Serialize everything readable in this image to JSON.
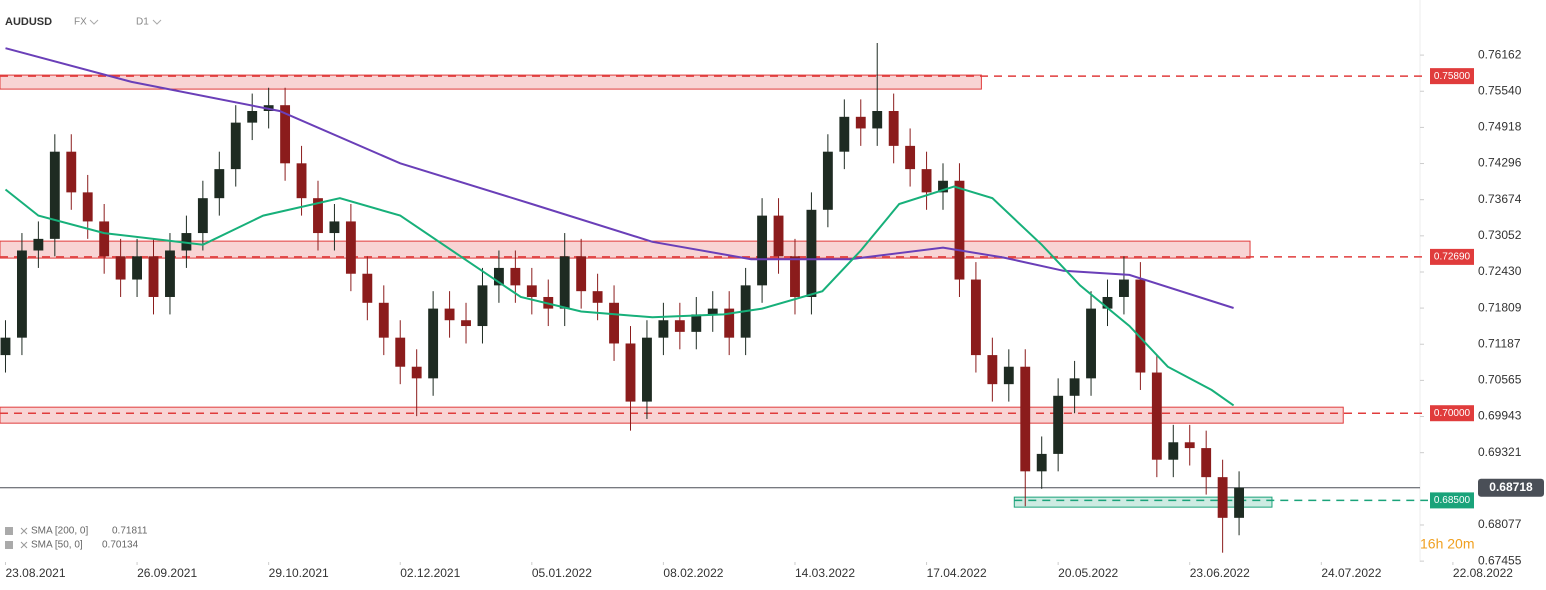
{
  "header": {
    "symbol": "AUDUSD",
    "market": "FX",
    "interval": "D1"
  },
  "timer": "16h 20m",
  "chart_data": {
    "type": "candlestick",
    "up_color": "#1e2b22",
    "down_color": "#8b1c1c",
    "xlim": [
      -1,
      258
    ],
    "ylim": [
      0.6744,
      0.7711
    ],
    "xticks": [
      {
        "value": 0,
        "label": "23.08.2021"
      },
      {
        "value": 24,
        "label": "26.09.2021"
      },
      {
        "value": 48,
        "label": "29.10.2021"
      },
      {
        "value": 72,
        "label": "02.12.2021"
      },
      {
        "value": 96,
        "label": "05.01.2022"
      },
      {
        "value": 120,
        "label": "08.02.2022"
      },
      {
        "value": 144,
        "label": "14.03.2022"
      },
      {
        "value": 168,
        "label": "17.04.2022"
      },
      {
        "value": 192,
        "label": "20.05.2022"
      },
      {
        "value": 216,
        "label": "23.06.2022"
      },
      {
        "value": 240,
        "label": "24.07.2022"
      },
      {
        "value": 264,
        "label": "22.08.2022"
      }
    ],
    "yticks": [
      0.76162,
      {
        "value": 0.7554,
        "label": "0.75540"
      },
      0.74918,
      0.74296,
      0.73674,
      0.73052,
      {
        "value": 0.7243,
        "label": "0.72430"
      },
      0.71809,
      0.71187,
      0.70565,
      0.69943,
      0.69321,
      0.68077,
      0.67455
    ],
    "x": [
      0,
      3,
      6,
      9,
      12,
      15,
      18,
      21,
      24,
      27,
      30,
      33,
      36,
      39,
      42,
      45,
      48,
      51,
      54,
      57,
      60,
      63,
      66,
      69,
      72,
      75,
      78,
      81,
      84,
      87,
      90,
      93,
      96,
      99,
      102,
      105,
      108,
      111,
      114,
      117,
      120,
      123,
      126,
      129,
      132,
      135,
      138,
      141,
      144,
      147,
      150,
      153,
      156,
      159,
      162,
      165,
      168,
      171,
      174,
      177,
      180,
      183,
      186,
      189,
      192,
      195,
      198,
      201,
      204,
      207,
      210,
      213,
      216,
      219,
      222,
      225
    ],
    "open": [
      0.71,
      0.713,
      0.728,
      0.73,
      0.745,
      0.738,
      0.733,
      0.727,
      0.723,
      0.727,
      0.72,
      0.728,
      0.731,
      0.737,
      0.742,
      0.75,
      0.752,
      0.753,
      0.743,
      0.737,
      0.731,
      0.733,
      0.724,
      0.719,
      0.713,
      0.708,
      0.706,
      0.718,
      0.716,
      0.715,
      0.722,
      0.725,
      0.722,
      0.72,
      0.718,
      0.727,
      0.721,
      0.719,
      0.712,
      0.702,
      0.713,
      0.716,
      0.714,
      0.717,
      0.718,
      0.713,
      0.722,
      0.734,
      0.727,
      0.72,
      0.735,
      0.745,
      0.751,
      0.749,
      0.752,
      0.746,
      0.742,
      0.738,
      0.74,
      0.723,
      0.71,
      0.705,
      0.708,
      0.69,
      0.693,
      0.703,
      0.706,
      0.718,
      0.72,
      0.723,
      0.707,
      0.692,
      0.695,
      0.694,
      0.689,
      0.682
    ],
    "high": [
      0.716,
      0.731,
      0.733,
      0.748,
      0.748,
      0.741,
      0.736,
      0.73,
      0.73,
      0.73,
      0.731,
      0.734,
      0.74,
      0.745,
      0.753,
      0.755,
      0.756,
      0.756,
      0.746,
      0.74,
      0.736,
      0.736,
      0.727,
      0.722,
      0.716,
      0.711,
      0.721,
      0.721,
      0.719,
      0.725,
      0.728,
      0.728,
      0.725,
      0.723,
      0.731,
      0.73,
      0.724,
      0.722,
      0.715,
      0.716,
      0.719,
      0.719,
      0.72,
      0.721,
      0.721,
      0.725,
      0.737,
      0.737,
      0.73,
      0.738,
      0.748,
      0.754,
      0.754,
      0.7637,
      0.755,
      0.749,
      0.745,
      0.743,
      0.743,
      0.726,
      0.713,
      0.711,
      0.711,
      0.696,
      0.706,
      0.709,
      0.721,
      0.723,
      0.727,
      0.726,
      0.71,
      0.698,
      0.698,
      0.697,
      0.692,
      0.69
    ],
    "low": [
      0.707,
      0.71,
      0.725,
      0.727,
      0.735,
      0.73,
      0.724,
      0.72,
      0.72,
      0.717,
      0.717,
      0.725,
      0.728,
      0.734,
      0.739,
      0.747,
      0.749,
      0.74,
      0.734,
      0.728,
      0.728,
      0.721,
      0.716,
      0.71,
      0.705,
      0.6995,
      0.703,
      0.713,
      0.712,
      0.712,
      0.719,
      0.719,
      0.717,
      0.715,
      0.715,
      0.718,
      0.716,
      0.709,
      0.697,
      0.699,
      0.71,
      0.711,
      0.711,
      0.714,
      0.71,
      0.71,
      0.719,
      0.724,
      0.717,
      0.717,
      0.732,
      0.742,
      0.746,
      0.746,
      0.743,
      0.739,
      0.735,
      0.735,
      0.72,
      0.707,
      0.702,
      0.702,
      0.684,
      0.687,
      0.69,
      0.7,
      0.703,
      0.715,
      0.717,
      0.704,
      0.689,
      0.689,
      0.691,
      0.686,
      0.676,
      0.679
    ],
    "close": [
      0.713,
      0.728,
      0.73,
      0.745,
      0.738,
      0.733,
      0.727,
      0.723,
      0.727,
      0.72,
      0.728,
      0.731,
      0.737,
      0.742,
      0.75,
      0.752,
      0.753,
      0.743,
      0.737,
      0.731,
      0.733,
      0.724,
      0.719,
      0.713,
      0.708,
      0.706,
      0.718,
      0.716,
      0.715,
      0.722,
      0.725,
      0.722,
      0.72,
      0.718,
      0.727,
      0.721,
      0.719,
      0.712,
      0.702,
      0.713,
      0.716,
      0.714,
      0.717,
      0.718,
      0.713,
      0.722,
      0.734,
      0.727,
      0.72,
      0.735,
      0.745,
      0.751,
      0.749,
      0.752,
      0.746,
      0.742,
      0.738,
      0.74,
      0.723,
      0.71,
      0.705,
      0.708,
      0.69,
      0.693,
      0.703,
      0.706,
      0.718,
      0.72,
      0.723,
      0.707,
      0.692,
      0.695,
      0.694,
      0.689,
      0.682,
      0.68718
    ],
    "series": [
      {
        "name": "SMA [200, 0]",
        "last_label": "0.71811",
        "color": "#6a3fb8",
        "x": [
          0,
          23,
          50,
          72,
          96,
          118,
          136,
          154,
          171,
          182,
          193,
          205,
          224
        ],
        "values": [
          0.7628,
          0.757,
          0.752,
          0.743,
          0.736,
          0.7295,
          0.7265,
          0.7265,
          0.7285,
          0.7268,
          0.7245,
          0.7238,
          0.71811
        ]
      },
      {
        "name": "SMA [50, 0]",
        "last_label": "0.70134",
        "color": "#17b07a",
        "x": [
          0,
          6,
          18,
          36,
          47,
          61,
          72,
          83,
          94,
          105,
          118,
          131,
          138,
          149,
          156,
          163,
          173,
          180,
          189,
          196,
          205,
          212,
          220,
          224
        ],
        "values": [
          0.7385,
          0.734,
          0.731,
          0.729,
          0.734,
          0.737,
          0.734,
          0.727,
          0.72,
          0.7175,
          0.7165,
          0.717,
          0.718,
          0.721,
          0.728,
          0.736,
          0.739,
          0.737,
          0.729,
          0.722,
          0.715,
          0.708,
          0.704,
          0.70134
        ]
      }
    ],
    "levels": [
      {
        "value": 0.758,
        "label": "0.75800",
        "color": "#e03c3c",
        "zone": [
          0.75577,
          0.75818
        ],
        "zone_x": [
          -1,
          178
        ]
      },
      {
        "value": 0.7269,
        "label": "0.72690",
        "color": "#e03c3c",
        "zone": [
          0.72669,
          0.72961
        ],
        "zone_x": [
          -1,
          227
        ]
      },
      {
        "value": 0.7,
        "label": "0.70000",
        "color": "#e03c3c",
        "zone": [
          0.69829,
          0.70104
        ],
        "zone_x": [
          -1,
          244
        ]
      },
      {
        "value": 0.685,
        "label": "0.68500",
        "color": "#1aa37a",
        "zone": [
          0.68384,
          0.68556
        ],
        "zone_x": [
          184,
          231
        ]
      }
    ],
    "last_price": {
      "value": 0.68718,
      "label": "0.68718",
      "color": "#4a4f57"
    }
  }
}
